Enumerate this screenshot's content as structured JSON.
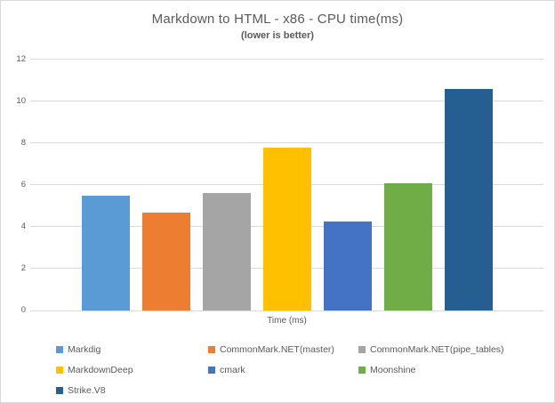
{
  "chart_data": {
    "type": "bar",
    "title": "Markdown to HTML - x86 - CPU time(ms)",
    "subtitle": "(lower is better)",
    "xlabel": "Time (ms)",
    "ylabel": "",
    "ylim": [
      0,
      12
    ],
    "yticks": [
      0,
      2,
      4,
      6,
      8,
      10,
      12
    ],
    "grid": true,
    "legend_position": "bottom",
    "categories": [
      "Time (ms)"
    ],
    "series": [
      {
        "name": "Markdig",
        "values": [
          5.5
        ],
        "color": "#5b9bd5"
      },
      {
        "name": "CommonMark.NET(master)",
        "values": [
          4.7
        ],
        "color": "#ed7d31"
      },
      {
        "name": "CommonMark.NET(pipe_tables)",
        "values": [
          5.6
        ],
        "color": "#a5a5a5"
      },
      {
        "name": "MarkdownDeep",
        "values": [
          7.8
        ],
        "color": "#ffc000"
      },
      {
        "name": "cmark",
        "values": [
          4.25
        ],
        "color": "#4472c4"
      },
      {
        "name": "Moonshine",
        "values": [
          6.1
        ],
        "color": "#70ad47"
      },
      {
        "name": "Strike.V8",
        "values": [
          10.6
        ],
        "color": "#255e91"
      }
    ],
    "style": {
      "text_color": "#595959",
      "gridline_color": "#d9d9d9",
      "border_color": "#d9d9d9",
      "background": "#ffffff"
    }
  }
}
